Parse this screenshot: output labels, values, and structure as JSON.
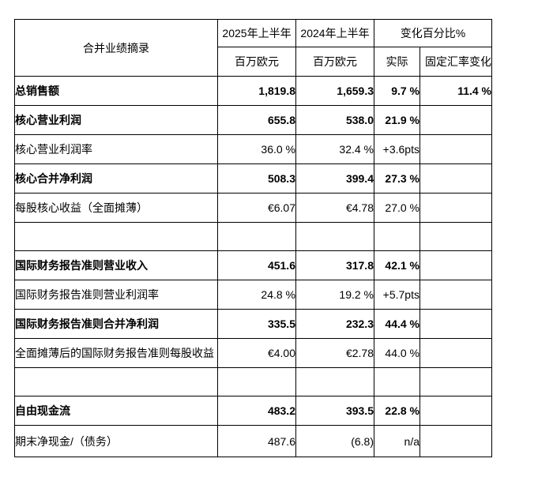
{
  "table": {
    "header": {
      "row_label_title": "合并业绩摘录",
      "col_2025": "2025年上半年",
      "col_2024": "2024年上半年",
      "col_change": "变化百分比%",
      "unit_2025": "百万欧元",
      "unit_2024": "百万欧元",
      "sub_actual": "实际",
      "sub_cer": "固定汇率变化"
    },
    "rows": [
      {
        "label": "总销售额",
        "v2025": "1,819.8",
        "v2024": "1,659.3",
        "actual": "9.7 %",
        "cer": "11.4 %",
        "bold": true,
        "spacer": false
      },
      {
        "label": "核心营业利润",
        "v2025": "655.8",
        "v2024": "538.0",
        "actual": "21.9 %",
        "cer": "",
        "bold": true,
        "spacer": false
      },
      {
        "label": "核心营业利润率",
        "v2025": "36.0 %",
        "v2024": "32.4 %",
        "actual": "+3.6pts",
        "cer": "",
        "bold": false,
        "spacer": false
      },
      {
        "label": "核心合并净利润",
        "v2025": "508.3",
        "v2024": "399.4",
        "actual": "27.3 %",
        "cer": "",
        "bold": true,
        "spacer": false
      },
      {
        "label": "每股核心收益（全面摊薄）",
        "v2025": "€6.07",
        "v2024": "€4.78",
        "actual": "27.0 %",
        "cer": "",
        "bold": false,
        "spacer": false
      },
      {
        "label": "",
        "v2025": "",
        "v2024": "",
        "actual": "",
        "cer": "",
        "bold": false,
        "spacer": true
      },
      {
        "label": "国际财务报告准则营业收入",
        "v2025": "451.6",
        "v2024": "317.8",
        "actual": "42.1 %",
        "cer": "",
        "bold": true,
        "spacer": false
      },
      {
        "label": "国际财务报告准则营业利润率",
        "v2025": "24.8 %",
        "v2024": "19.2 %",
        "actual": "+5.7pts",
        "cer": "",
        "bold": false,
        "spacer": false
      },
      {
        "label": "国际财务报告准则合并净利润",
        "v2025": "335.5",
        "v2024": "232.3",
        "actual": "44.4 %",
        "cer": "",
        "bold": true,
        "spacer": false
      },
      {
        "label": "全面摊薄后的国际财务报告准则每股收益",
        "v2025": "€4.00",
        "v2024": "€2.78",
        "actual": "44.0 %",
        "cer": "",
        "bold": false,
        "spacer": false
      },
      {
        "label": "",
        "v2025": "",
        "v2024": "",
        "actual": "",
        "cer": "",
        "bold": false,
        "spacer": true
      },
      {
        "label": "自由现金流",
        "v2025": "483.2",
        "v2024": "393.5",
        "actual": "22.8 %",
        "cer": "",
        "bold": true,
        "spacer": false
      },
      {
        "label": "期末净现金/（债务）",
        "v2025": "487.6",
        "v2024": "(6.8)",
        "actual": "n/a",
        "cer": "",
        "bold": false,
        "spacer": false
      }
    ],
    "colors": {
      "border": "#000000",
      "text": "#000000",
      "background": "#ffffff"
    }
  }
}
